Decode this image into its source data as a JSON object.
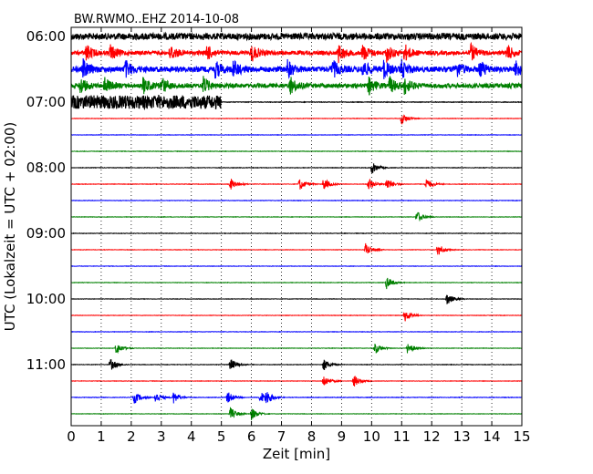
{
  "chart_data": {
    "type": "line",
    "title": "BW.RWMO..EHZ 2014-10-08",
    "xlabel": "Zeit  [min]",
    "ylabel": "UTC (Lokalzeit = UTC + 02:00)",
    "xlim": [
      0,
      15
    ],
    "x_ticks": [
      "0",
      "1",
      "2",
      "3",
      "4",
      "5",
      "6",
      "7",
      "8",
      "9",
      "10",
      "11",
      "12",
      "13",
      "14",
      "15"
    ],
    "hour_labels": [
      "06:00",
      "07:00",
      "08:00",
      "09:00",
      "10:00",
      "11:00"
    ],
    "grid": {
      "vertical": true,
      "style": "dotted"
    },
    "trace_colors": [
      "#000000",
      "#ff0000",
      "#0000ff",
      "#008000"
    ],
    "trace_interval_min": 15,
    "traces": [
      {
        "time": "06:00",
        "color": "#000000",
        "noise": 0.9,
        "events": []
      },
      {
        "time": "06:15",
        "color": "#ff0000",
        "noise": 0.55,
        "events": [
          0.5,
          1.3,
          3.3,
          4.5,
          6.0,
          8.9,
          9.7,
          10.5,
          11.1,
          13.3,
          14.5
        ]
      },
      {
        "time": "06:30",
        "color": "#0000ff",
        "noise": 0.75,
        "events": [
          0.4,
          1.8,
          4.8,
          5.4,
          7.2,
          8.7,
          9.7,
          10.4,
          11.0,
          12.8,
          13.6,
          14.8
        ]
      },
      {
        "time": "06:45",
        "color": "#008000",
        "noise": 0.6,
        "events": [
          0.3,
          1.1,
          2.4,
          3.0,
          4.4,
          7.3,
          9.9,
          10.6,
          11.1
        ]
      },
      {
        "time": "07:00",
        "color": "#000000",
        "noise": 0.08,
        "loud_until": 5.0,
        "events": []
      },
      {
        "time": "07:15",
        "color": "#ff0000",
        "noise": 0.06,
        "events": [
          11.0
        ]
      },
      {
        "time": "07:30",
        "color": "#0000ff",
        "noise": 0.06,
        "events": []
      },
      {
        "time": "07:45",
        "color": "#008000",
        "noise": 0.07,
        "events": []
      },
      {
        "time": "08:00",
        "color": "#000000",
        "noise": 0.07,
        "events": [
          10.0
        ]
      },
      {
        "time": "08:15",
        "color": "#ff0000",
        "noise": 0.07,
        "events": [
          5.3,
          7.6,
          8.4,
          9.9,
          10.5,
          11.8
        ]
      },
      {
        "time": "08:30",
        "color": "#0000ff",
        "noise": 0.06,
        "events": []
      },
      {
        "time": "08:45",
        "color": "#008000",
        "noise": 0.06,
        "events": [
          11.5
        ]
      },
      {
        "time": "09:00",
        "color": "#000000",
        "noise": 0.07,
        "events": []
      },
      {
        "time": "09:15",
        "color": "#ff0000",
        "noise": 0.06,
        "events": [
          9.8,
          12.2
        ]
      },
      {
        "time": "09:30",
        "color": "#0000ff",
        "noise": 0.06,
        "events": []
      },
      {
        "time": "09:45",
        "color": "#008000",
        "noise": 0.06,
        "events": [
          10.5
        ]
      },
      {
        "time": "10:00",
        "color": "#000000",
        "noise": 0.06,
        "events": [
          12.5
        ]
      },
      {
        "time": "10:15",
        "color": "#ff0000",
        "noise": 0.06,
        "events": [
          11.1
        ]
      },
      {
        "time": "10:30",
        "color": "#0000ff",
        "noise": 0.06,
        "events": []
      },
      {
        "time": "10:45",
        "color": "#008000",
        "noise": 0.06,
        "events": [
          1.5,
          10.1,
          11.2
        ]
      },
      {
        "time": "11:00",
        "color": "#000000",
        "noise": 0.07,
        "events": [
          1.3,
          5.3,
          8.4
        ]
      },
      {
        "time": "11:15",
        "color": "#ff0000",
        "noise": 0.06,
        "events": [
          8.4,
          9.4
        ]
      },
      {
        "time": "11:30",
        "color": "#0000ff",
        "noise": 0.07,
        "events": [
          2.1,
          2.8,
          3.4,
          5.2,
          6.3,
          6.5
        ]
      },
      {
        "time": "11:45",
        "color": "#008000",
        "noise": 0.06,
        "events": [
          5.3,
          6.0
        ]
      }
    ]
  }
}
